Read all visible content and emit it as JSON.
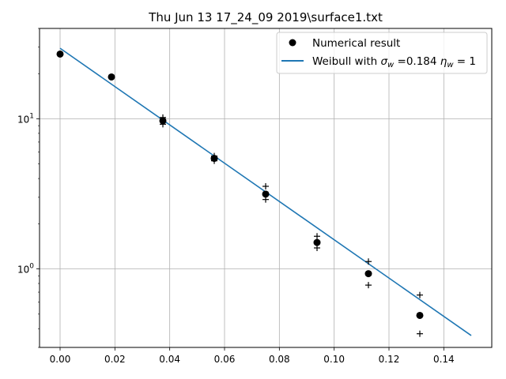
{
  "chart_data": {
    "type": "scatter",
    "title": "Thu Jun 13 17_24_09 2019\\surface1.txt",
    "xlabel": "",
    "ylabel": "",
    "xlim": [
      -0.0075,
      0.1575
    ],
    "ylim": [
      0.3,
      40
    ],
    "yscale": "log",
    "grid": true,
    "legend_position": "top-right",
    "x_ticks": [
      {
        "value": 0.0,
        "label": "0.00"
      },
      {
        "value": 0.02,
        "label": "0.02"
      },
      {
        "value": 0.04,
        "label": "0.04"
      },
      {
        "value": 0.06,
        "label": "0.06"
      },
      {
        "value": 0.08,
        "label": "0.08"
      },
      {
        "value": 0.1,
        "label": "0.10"
      },
      {
        "value": 0.12,
        "label": "0.12"
      },
      {
        "value": 0.14,
        "label": "0.14"
      }
    ],
    "y_ticks": [
      {
        "value": 1,
        "base": "10",
        "exp": "0"
      },
      {
        "value": 10,
        "base": "10",
        "exp": "1"
      }
    ],
    "series": [
      {
        "name": "Numerical result",
        "kind": "points",
        "marker": "circle",
        "color": "#000000",
        "x": [
          0.0,
          0.01875,
          0.0375,
          0.05625,
          0.075,
          0.09375,
          0.1125,
          0.13125
        ],
        "y": [
          27.0,
          19.0,
          9.7,
          5.45,
          3.15,
          1.5,
          0.93,
          0.49
        ]
      },
      {
        "name": "",
        "kind": "error_bounds",
        "marker": "plus",
        "color": "#000000",
        "x": [
          0.0375,
          0.0375,
          0.05625,
          0.05625,
          0.075,
          0.075,
          0.09375,
          0.09375,
          0.1125,
          0.1125,
          0.13125,
          0.13125
        ],
        "y": [
          10.2,
          9.2,
          5.65,
          5.25,
          3.55,
          2.9,
          1.65,
          1.38,
          1.12,
          0.78,
          0.67,
          0.37
        ]
      },
      {
        "name": "Weibull with σ_w =0.184 η_w = 1",
        "kind": "line",
        "color": "#1f77b4",
        "x": [
          0.0,
          0.15
        ],
        "y": [
          29.5,
          0.36
        ]
      }
    ],
    "legend": {
      "entries": [
        {
          "text": "Numerical result",
          "marker": "circle"
        },
        {
          "text_prefix": "Weibull with ",
          "sigma": "σ",
          "sigma_sub": "w",
          "mid": " =0.184 ",
          "eta": "η",
          "eta_sub": "w",
          "suffix": " = 1",
          "marker": "line"
        }
      ]
    }
  }
}
